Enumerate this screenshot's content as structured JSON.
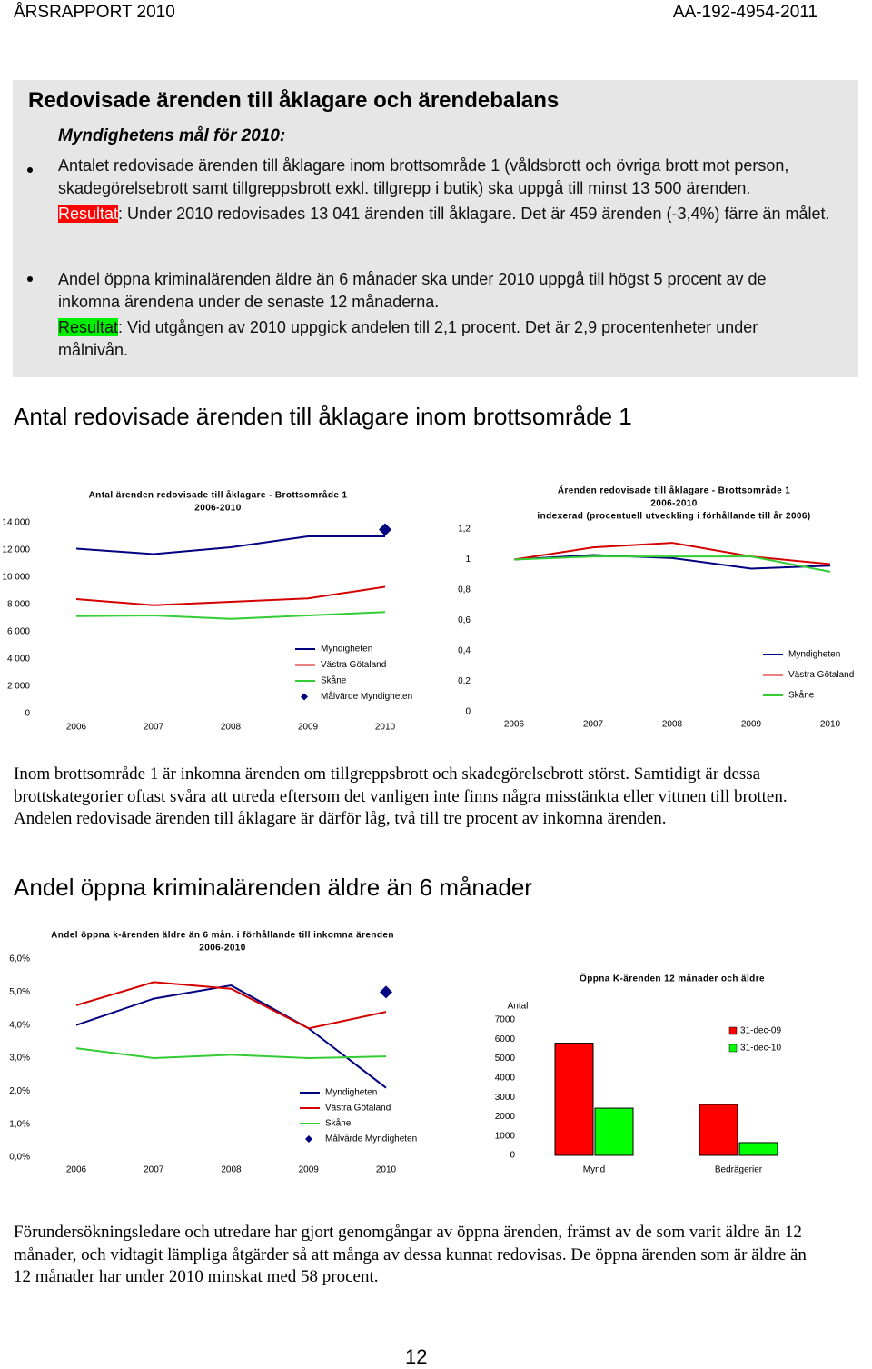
{
  "header": {
    "left": "ÅRSRAPPORT 2010",
    "right": "AA-192-4954-2011"
  },
  "goal_box": {
    "title": "Redovisade ärenden till åklagare och ärendebalans",
    "subtitle": "Myndighetens mål för 2010:",
    "items": [
      {
        "text": "Antalet redovisade ärenden till åklagare inom brottsområde 1 (våldsbrott och övriga brott mot person, skadegörelsebrott samt tillgreppsbrott exkl. tillgrepp i butik) ska uppgå till minst 13 500 ärenden.",
        "result_label": "Resultat",
        "result_text": ": Under 2010 redovisades 13 041 ärenden till åklagare. Det är 459 ärenden (-3,4%) färre än målet."
      },
      {
        "text": "Andel öppna kriminalärenden äldre än 6 månader ska under 2010 uppgå till högst 5 procent av de inkomna ärendena under de senaste 12 månaderna.",
        "result_label": "Resultat",
        "result_text": ": Vid utgången av 2010 uppgick andelen till 2,1 procent. Det är 2,9 procentenheter under målnivån."
      }
    ]
  },
  "sections": [
    {
      "heading": "Antal redovisade ärenden till åklagare inom brottsområde 1",
      "paragraph": "Inom brottsområde 1 är inkomna ärenden om tillgreppsbrott och skadegörelsebrott störst. Samtidigt är dessa brottskategorier oftast svåra att utreda eftersom det vanligen inte finns några misstänkta eller vittnen till brotten. Andelen redovisade ärenden till åklagare är därför låg, två till tre procent av inkomna ärenden."
    },
    {
      "heading": "Andel öppna kriminalärenden äldre än 6 månader",
      "paragraph": "Förundersökningsledare och utredare har gjort genomgångar av öppna ärenden, främst av de som varit äldre än 12 månader, och vidtagit lämpliga åtgärder så att många av dessa kunnat redovisas. De öppna ärenden som är äldre än 12 månader har under 2010 minskat med 58 procent."
    }
  ],
  "chart_data": [
    {
      "type": "line",
      "title": "Antal ärenden redovisade till åklagare - Brottsområde 1",
      "subtitle": "2006-2010",
      "categories": [
        "2006",
        "2007",
        "2008",
        "2009",
        "2010"
      ],
      "ylim": [
        0,
        14000
      ],
      "yticks": [
        0,
        {
          "value": 2000,
          "label": "2 000"
        },
        {
          "value": 4000,
          "label": "4 000"
        },
        {
          "value": 6000,
          "label": "6 000"
        },
        {
          "value": 8000,
          "label": "8 000"
        },
        {
          "value": 10000,
          "label": "10 000"
        },
        {
          "value": 12000,
          "label": "12 000"
        },
        {
          "value": 14000,
          "label": "14 000"
        }
      ],
      "series": [
        {
          "name": "Myndigheten",
          "color": "#000080",
          "values": [
            12100,
            11700,
            12200,
            13000,
            13000
          ]
        },
        {
          "name": "Västra Götaland",
          "color": "#d40000",
          "values": [
            8400,
            7950,
            8200,
            8450,
            9300
          ]
        },
        {
          "name": "Skåne",
          "color": "#33cc33",
          "values": [
            7150,
            7200,
            6950,
            7200,
            7450
          ]
        },
        {
          "name": "Målvärde Myndigheten",
          "color": "#000080",
          "marker": "diamond",
          "values": [
            null,
            null,
            null,
            null,
            13500
          ]
        }
      ]
    },
    {
      "type": "line",
      "title": "Ärenden redovisade till åklagare - Brottsområde 1",
      "subtitle": "2006-2010",
      "note": "indexerad (procentuell utveckling i förhållande till år 2006)",
      "categories": [
        "2006",
        "2007",
        "2008",
        "2009",
        "2010"
      ],
      "ylim": [
        0,
        1.2
      ],
      "yticks": [
        0,
        {
          "value": 0.2,
          "label": "0,2"
        },
        {
          "value": 0.4,
          "label": "0,4"
        },
        {
          "value": 0.6,
          "label": "0,6"
        },
        {
          "value": 0.8,
          "label": "0,8"
        },
        1,
        {
          "value": 1.2,
          "label": "1,2"
        }
      ],
      "series": [
        {
          "name": "Myndigheten",
          "color": "#000080",
          "values": [
            1,
            1.03,
            1.01,
            0.94,
            0.96
          ]
        },
        {
          "name": "Västra Götaland",
          "color": "#d40000",
          "values": [
            1,
            1.08,
            1.11,
            1.02,
            0.97
          ]
        },
        {
          "name": "Skåne",
          "color": "#33cc33",
          "values": [
            1,
            1.02,
            1.02,
            1.02,
            0.92
          ]
        }
      ]
    },
    {
      "type": "line",
      "title": "Andel öppna k-ärenden äldre än 6 mån. i förhållande till inkomna ärenden",
      "subtitle": "2006-2010",
      "categories": [
        "2006",
        "2007",
        "2008",
        "2009",
        "2010"
      ],
      "ylim": [
        0,
        6
      ],
      "yticks": [
        {
          "value": 0,
          "label": "0,0%"
        },
        {
          "value": 1,
          "label": "1,0%"
        },
        {
          "value": 2,
          "label": "2,0%"
        },
        {
          "value": 3,
          "label": "3,0%"
        },
        {
          "value": 4,
          "label": "4,0%"
        },
        {
          "value": 5,
          "label": "5,0%"
        },
        {
          "value": 6,
          "label": "6,0%"
        }
      ],
      "series": [
        {
          "name": "Myndigheten",
          "color": "#000080",
          "values": [
            4.0,
            4.8,
            5.2,
            3.9,
            2.1
          ]
        },
        {
          "name": "Västra Götaland",
          "color": "#d40000",
          "values": [
            4.6,
            5.3,
            5.1,
            3.9,
            4.4
          ]
        },
        {
          "name": "Skåne",
          "color": "#33cc33",
          "values": [
            3.3,
            3.0,
            3.1,
            3.0,
            3.05
          ]
        },
        {
          "name": "Målvärde Myndigheten",
          "color": "#000080",
          "marker": "diamond",
          "values": [
            null,
            null,
            null,
            null,
            5
          ]
        }
      ]
    },
    {
      "type": "bar",
      "title": "Öppna K-ärenden 12 månader och äldre",
      "y_label": "Antal",
      "categories": [
        "Mynd",
        "Bedrägerier"
      ],
      "ylim": [
        0,
        7000
      ],
      "yticks": [
        0,
        1000,
        2000,
        3000,
        4000,
        5000,
        6000,
        7000
      ],
      "series": [
        {
          "name": "31-dec-09",
          "color": "#ff0000",
          "values": [
            5800,
            2630
          ]
        },
        {
          "name": "31-dec-10",
          "color": "#00ff00",
          "values": [
            2440,
            660
          ]
        }
      ]
    }
  ],
  "page_number": "12"
}
